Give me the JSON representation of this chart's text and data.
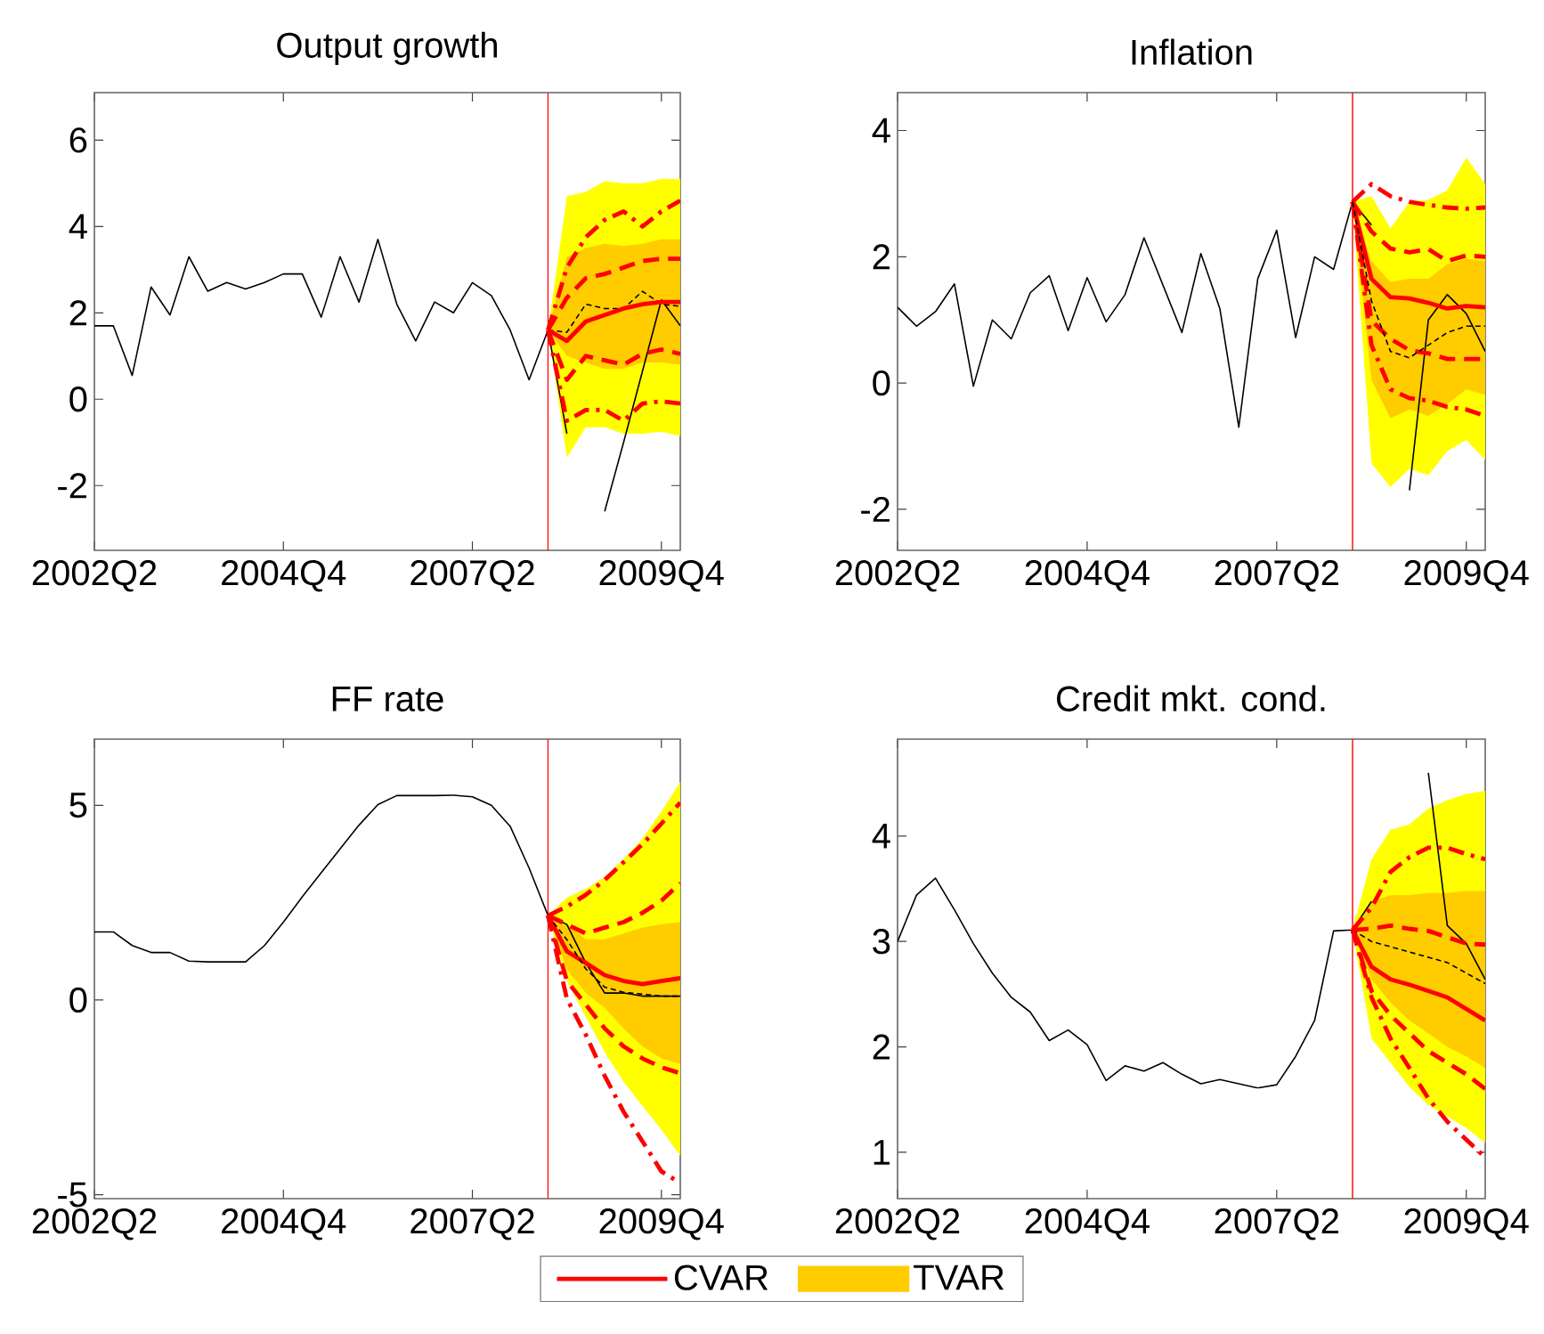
{
  "chart_data": [
    {
      "type": "line",
      "title": "Output growth",
      "categories": [
        "2002Q2",
        null,
        null,
        null,
        null,
        null,
        null,
        null,
        null,
        null,
        "2004Q4",
        null,
        null,
        null,
        null,
        null,
        null,
        null,
        null,
        null,
        "2007Q2",
        null,
        null,
        null,
        null,
        null,
        null,
        null,
        null,
        null,
        "2009Q4",
        null
      ],
      "ylim": [
        -3.5,
        7.1
      ],
      "yticks": [
        -2,
        0,
        2,
        4,
        6
      ],
      "series": [
        {
          "color": "#ffff00",
          "values": [
            null,
            null,
            null,
            null,
            null,
            null,
            null,
            null,
            null,
            null,
            null,
            null,
            null,
            null,
            null,
            null,
            null,
            null,
            null,
            null,
            null,
            null,
            null,
            null,
            null,
            null,
            null,
            null,
            null,
            null,
            null,
            null
          ],
          "upper": [
            null,
            null,
            null,
            null,
            null,
            null,
            null,
            null,
            null,
            null,
            null,
            null,
            null,
            null,
            null,
            null,
            null,
            null,
            null,
            null,
            null,
            null,
            null,
            null,
            1.6,
            4.7,
            4.8,
            5.05,
            5.0,
            5.0,
            5.1,
            5.1
          ],
          "lower": [
            null,
            null,
            null,
            null,
            null,
            null,
            null,
            null,
            null,
            null,
            null,
            null,
            null,
            null,
            null,
            null,
            null,
            null,
            null,
            null,
            null,
            null,
            null,
            null,
            1.6,
            -1.35,
            -0.65,
            -0.65,
            -0.8,
            -0.8,
            -0.75,
            -0.85
          ]
        },
        {
          "color": "#ffcc00",
          "values": [
            null,
            null,
            null,
            null,
            null,
            null,
            null,
            null,
            null,
            null,
            null,
            null,
            null,
            null,
            null,
            null,
            null,
            null,
            null,
            null,
            null,
            null,
            null,
            null,
            null,
            null,
            null,
            null,
            null,
            null,
            null,
            null
          ],
          "upper": [
            null,
            null,
            null,
            null,
            null,
            null,
            null,
            null,
            null,
            null,
            null,
            null,
            null,
            null,
            null,
            null,
            null,
            null,
            null,
            null,
            null,
            null,
            null,
            null,
            1.6,
            3.3,
            3.5,
            3.6,
            3.55,
            3.6,
            3.7,
            3.7
          ],
          "lower": [
            null,
            null,
            null,
            null,
            null,
            null,
            null,
            null,
            null,
            null,
            null,
            null,
            null,
            null,
            null,
            null,
            null,
            null,
            null,
            null,
            null,
            null,
            null,
            null,
            1.6,
            1.0,
            0.85,
            0.7,
            0.7,
            0.85,
            0.85,
            0.8
          ]
        },
        {
          "color": "#000000",
          "values": [
            1.7,
            1.7,
            0.55,
            2.6,
            1.95,
            3.3,
            2.5,
            2.7,
            2.55,
            2.7,
            2.9,
            2.9,
            1.9,
            3.3,
            2.25,
            3.7,
            2.2,
            1.35,
            2.25,
            2.0,
            2.7,
            2.4,
            1.6,
            0.45,
            1.6,
            -0.8,
            null,
            -2.6,
            -1.0,
            0.65,
            2.3,
            1.7
          ]
        },
        {
          "color": "#000000",
          "line_style": "dashed",
          "values": [
            null,
            null,
            null,
            null,
            null,
            null,
            null,
            null,
            null,
            null,
            null,
            null,
            null,
            null,
            null,
            null,
            null,
            null,
            null,
            null,
            null,
            null,
            null,
            null,
            1.6,
            1.55,
            2.2,
            2.1,
            2.1,
            2.5,
            2.2,
            2.15
          ]
        },
        {
          "color": "#ff0000",
          "values": [
            null,
            null,
            null,
            null,
            null,
            null,
            null,
            null,
            null,
            null,
            null,
            null,
            null,
            null,
            null,
            null,
            null,
            null,
            null,
            null,
            null,
            null,
            null,
            null,
            1.6,
            1.35,
            1.8,
            1.95,
            2.1,
            2.2,
            2.25,
            2.25
          ]
        },
        {
          "color": "#ff0000",
          "line_style": "dashed",
          "values": [
            null,
            null,
            null,
            null,
            null,
            null,
            null,
            null,
            null,
            null,
            null,
            null,
            null,
            null,
            null,
            null,
            null,
            null,
            null,
            null,
            null,
            null,
            null,
            null,
            1.6,
            2.35,
            2.8,
            2.9,
            3.05,
            3.2,
            3.25,
            3.25
          ]
        },
        {
          "color": "#ff0000",
          "line_style": "dashed",
          "values": [
            null,
            null,
            null,
            null,
            null,
            null,
            null,
            null,
            null,
            null,
            null,
            null,
            null,
            null,
            null,
            null,
            null,
            null,
            null,
            null,
            null,
            null,
            null,
            null,
            1.6,
            0.45,
            1.0,
            0.9,
            0.8,
            1.05,
            1.15,
            1.05
          ]
        },
        {
          "color": "#ff0000",
          "line_style": "dashdot",
          "values": [
            null,
            null,
            null,
            null,
            null,
            null,
            null,
            null,
            null,
            null,
            null,
            null,
            null,
            null,
            null,
            null,
            null,
            null,
            null,
            null,
            null,
            null,
            null,
            null,
            1.6,
            3.05,
            3.75,
            4.15,
            4.35,
            4.0,
            4.35,
            4.6
          ]
        },
        {
          "color": "#ff0000",
          "line_style": "dashdot",
          "values": [
            null,
            null,
            null,
            null,
            null,
            null,
            null,
            null,
            null,
            null,
            null,
            null,
            null,
            null,
            null,
            null,
            null,
            null,
            null,
            null,
            null,
            null,
            null,
            null,
            1.6,
            -0.5,
            -0.25,
            -0.25,
            -0.5,
            -0.1,
            -0.05,
            -0.1
          ]
        }
      ]
    },
    {
      "type": "line",
      "title": "Inflation",
      "categories": [
        "2002Q2",
        null,
        null,
        null,
        null,
        null,
        null,
        null,
        null,
        null,
        "2004Q4",
        null,
        null,
        null,
        null,
        null,
        null,
        null,
        null,
        null,
        "2007Q2",
        null,
        null,
        null,
        null,
        null,
        null,
        null,
        null,
        null,
        "2009Q4",
        null
      ],
      "ylim": [
        -2.65,
        4.6
      ],
      "yticks": [
        -2,
        0,
        2,
        4
      ],
      "series": [
        {
          "color": "#ffff00",
          "values": [
            null,
            null,
            null,
            null,
            null,
            null,
            null,
            null,
            null,
            null,
            null,
            null,
            null,
            null,
            null,
            null,
            null,
            null,
            null,
            null,
            null,
            null,
            null,
            null,
            null,
            null,
            null,
            null,
            null,
            null,
            null,
            null
          ],
          "upper": [
            null,
            null,
            null,
            null,
            null,
            null,
            null,
            null,
            null,
            null,
            null,
            null,
            null,
            null,
            null,
            null,
            null,
            null,
            null,
            null,
            null,
            null,
            null,
            null,
            2.87,
            2.96,
            2.45,
            2.87,
            2.9,
            3.05,
            3.57,
            3.15
          ],
          "lower": [
            null,
            null,
            null,
            null,
            null,
            null,
            null,
            null,
            null,
            null,
            null,
            null,
            null,
            null,
            null,
            null,
            null,
            null,
            null,
            null,
            null,
            null,
            null,
            null,
            2.87,
            -1.27,
            -1.65,
            -1.36,
            -1.46,
            -1.08,
            -0.9,
            -1.22
          ]
        },
        {
          "color": "#ffcc00",
          "values": [
            null,
            null,
            null,
            null,
            null,
            null,
            null,
            null,
            null,
            null,
            null,
            null,
            null,
            null,
            null,
            null,
            null,
            null,
            null,
            null,
            null,
            null,
            null,
            null,
            null,
            null,
            null,
            null,
            null,
            null,
            null,
            null
          ],
          "upper": [
            null,
            null,
            null,
            null,
            null,
            null,
            null,
            null,
            null,
            null,
            null,
            null,
            null,
            null,
            null,
            null,
            null,
            null,
            null,
            null,
            null,
            null,
            null,
            null,
            2.87,
            1.93,
            1.6,
            1.65,
            1.65,
            1.88,
            1.97,
            1.93
          ],
          "lower": [
            null,
            null,
            null,
            null,
            null,
            null,
            null,
            null,
            null,
            null,
            null,
            null,
            null,
            null,
            null,
            null,
            null,
            null,
            null,
            null,
            null,
            null,
            null,
            null,
            2.87,
            0.05,
            -0.56,
            -0.42,
            -0.52,
            -0.33,
            -0.1,
            -0.19
          ]
        },
        {
          "color": "#000000",
          "values": [
            1.2,
            0.9,
            1.13,
            1.57,
            -0.05,
            1.0,
            0.7,
            1.43,
            1.7,
            0.83,
            1.67,
            0.97,
            1.4,
            2.3,
            1.55,
            0.8,
            2.05,
            1.18,
            -0.7,
            1.65,
            2.42,
            0.72,
            2.0,
            1.8,
            2.87,
            2.5,
            null,
            -1.7,
            1.0,
            1.4,
            1.1,
            0.5
          ]
        },
        {
          "color": "#ff0000",
          "values": [
            null,
            null,
            null,
            null,
            null,
            null,
            null,
            null,
            null,
            null,
            null,
            null,
            null,
            null,
            null,
            null,
            null,
            null,
            null,
            null,
            null,
            null,
            null,
            null,
            2.87,
            1.65,
            1.36,
            1.34,
            1.27,
            1.18,
            1.22,
            1.2
          ]
        },
        {
          "color": "#ff0000",
          "line_style": "dashed",
          "values": [
            null,
            null,
            null,
            null,
            null,
            null,
            null,
            null,
            null,
            null,
            null,
            null,
            null,
            null,
            null,
            null,
            null,
            null,
            null,
            null,
            null,
            null,
            null,
            null,
            2.87,
            2.4,
            2.13,
            2.07,
            2.12,
            1.93,
            2.02,
            2.0
          ]
        },
        {
          "color": "#ff0000",
          "line_style": "dashed",
          "values": [
            null,
            null,
            null,
            null,
            null,
            null,
            null,
            null,
            null,
            null,
            null,
            null,
            null,
            null,
            null,
            null,
            null,
            null,
            null,
            null,
            null,
            null,
            null,
            null,
            2.87,
            0.99,
            0.7,
            0.52,
            0.47,
            0.38,
            0.38,
            0.38
          ]
        },
        {
          "color": "#ff0000",
          "line_style": "dashdot",
          "values": [
            null,
            null,
            null,
            null,
            null,
            null,
            null,
            null,
            null,
            null,
            null,
            null,
            null,
            null,
            null,
            null,
            null,
            null,
            null,
            null,
            null,
            null,
            null,
            null,
            2.87,
            3.15,
            2.96,
            2.87,
            2.82,
            2.78,
            2.76,
            2.78
          ]
        },
        {
          "color": "#ff0000",
          "line_style": "dashdot",
          "values": [
            null,
            null,
            null,
            null,
            null,
            null,
            null,
            null,
            null,
            null,
            null,
            null,
            null,
            null,
            null,
            null,
            null,
            null,
            null,
            null,
            null,
            null,
            null,
            null,
            2.87,
            0.6,
            -0.1,
            -0.24,
            -0.28,
            -0.38,
            -0.42,
            -0.52
          ]
        },
        {
          "color": "#000000",
          "line_style": "dashed",
          "values": [
            null,
            null,
            null,
            null,
            null,
            null,
            null,
            null,
            null,
            null,
            null,
            null,
            null,
            null,
            null,
            null,
            null,
            null,
            null,
            null,
            null,
            null,
            null,
            null,
            2.87,
            1.3,
            0.5,
            0.4,
            0.6,
            0.8,
            0.9,
            0.9
          ]
        }
      ]
    },
    {
      "type": "line",
      "title": "FF rate",
      "legend": "bottom",
      "categories": [
        "2002Q2",
        null,
        null,
        null,
        null,
        null,
        null,
        null,
        null,
        null,
        "2004Q4",
        null,
        null,
        null,
        null,
        null,
        null,
        null,
        null,
        null,
        "2007Q2",
        null,
        null,
        null,
        null,
        null,
        null,
        null,
        null,
        null,
        "2009Q4",
        null
      ],
      "ylim": [
        -5.1,
        6.7
      ],
      "yticks": [
        -5,
        0,
        5
      ],
      "series": [
        {
          "color": "#ffff00",
          "values": [
            null,
            null,
            null,
            null,
            null,
            null,
            null,
            null,
            null,
            null,
            null,
            null,
            null,
            null,
            null,
            null,
            null,
            null,
            null,
            null,
            null,
            null,
            null,
            null,
            null,
            null,
            null,
            null,
            null,
            null,
            null,
            null
          ],
          "upper": [
            null,
            null,
            null,
            null,
            null,
            null,
            null,
            null,
            null,
            null,
            null,
            null,
            null,
            null,
            null,
            null,
            null,
            null,
            null,
            null,
            null,
            null,
            null,
            null,
            2.17,
            2.63,
            2.85,
            3.16,
            3.62,
            4.15,
            4.84,
            5.6
          ],
          "lower": [
            null,
            null,
            null,
            null,
            null,
            null,
            null,
            null,
            null,
            null,
            null,
            null,
            null,
            null,
            null,
            null,
            null,
            null,
            null,
            null,
            null,
            null,
            null,
            null,
            2.17,
            0.49,
            -0.43,
            -1.34,
            -2.1,
            -2.72,
            -3.33,
            -4.0
          ]
        },
        {
          "name": "TVAR",
          "color": "#ffcc00",
          "values": [
            null,
            null,
            null,
            null,
            null,
            null,
            null,
            null,
            null,
            null,
            null,
            null,
            null,
            null,
            null,
            null,
            null,
            null,
            null,
            null,
            null,
            null,
            null,
            null,
            null,
            null,
            null,
            null,
            null,
            null,
            null,
            null
          ],
          "upper": [
            null,
            null,
            null,
            null,
            null,
            null,
            null,
            null,
            null,
            null,
            null,
            null,
            null,
            null,
            null,
            null,
            null,
            null,
            null,
            null,
            null,
            null,
            null,
            null,
            2.17,
            1.94,
            1.56,
            1.56,
            1.71,
            1.86,
            1.94,
            2.0
          ],
          "lower": [
            null,
            null,
            null,
            null,
            null,
            null,
            null,
            null,
            null,
            null,
            null,
            null,
            null,
            null,
            null,
            null,
            null,
            null,
            null,
            null,
            null,
            null,
            null,
            null,
            2.17,
            0.79,
            0.18,
            -0.2,
            -0.73,
            -1.19,
            -1.5,
            -1.65
          ]
        },
        {
          "color": "#000000",
          "values": [
            1.75,
            1.75,
            1.4,
            1.22,
            1.22,
            1.0,
            0.98,
            0.98,
            0.98,
            1.4,
            2.0,
            2.65,
            3.27,
            3.88,
            4.49,
            5.02,
            5.25,
            5.25,
            5.25,
            5.26,
            5.22,
            5.0,
            4.46,
            3.39,
            2.17,
            1.94,
            0.95,
            0.18,
            0.18,
            0.1,
            0.1,
            0.1
          ]
        },
        {
          "name": "CVAR",
          "color": "#ff0000",
          "values": [
            null,
            null,
            null,
            null,
            null,
            null,
            null,
            null,
            null,
            null,
            null,
            null,
            null,
            null,
            null,
            null,
            null,
            null,
            null,
            null,
            null,
            null,
            null,
            null,
            2.17,
            1.25,
            0.95,
            0.64,
            0.49,
            0.41,
            0.49,
            0.56
          ]
        },
        {
          "color": "#000000",
          "line_style": "dashed",
          "values": [
            null,
            null,
            null,
            null,
            null,
            null,
            null,
            null,
            null,
            null,
            null,
            null,
            null,
            null,
            null,
            null,
            null,
            null,
            null,
            null,
            null,
            null,
            null,
            null,
            2.17,
            1.55,
            0.8,
            0.33,
            0.2,
            0.15,
            0.1,
            0.1
          ]
        },
        {
          "color": "#ff0000",
          "line_style": "dashed",
          "values": [
            null,
            null,
            null,
            null,
            null,
            null,
            null,
            null,
            null,
            null,
            null,
            null,
            null,
            null,
            null,
            null,
            null,
            null,
            null,
            null,
            null,
            null,
            null,
            null,
            2.17,
            1.94,
            1.71,
            1.86,
            2.0,
            2.24,
            2.55,
            3.0
          ]
        },
        {
          "color": "#ff0000",
          "line_style": "dashed",
          "values": [
            null,
            null,
            null,
            null,
            null,
            null,
            null,
            null,
            null,
            null,
            null,
            null,
            null,
            null,
            null,
            null,
            null,
            null,
            null,
            null,
            null,
            null,
            null,
            null,
            2.17,
            0.49,
            -0.12,
            -0.73,
            -1.19,
            -1.5,
            -1.73,
            -1.88
          ]
        },
        {
          "color": "#ff0000",
          "line_style": "dashdot",
          "values": [
            null,
            null,
            null,
            null,
            null,
            null,
            null,
            null,
            null,
            null,
            null,
            null,
            null,
            null,
            null,
            null,
            null,
            null,
            null,
            null,
            null,
            null,
            null,
            null,
            2.17,
            2.4,
            2.7,
            3.08,
            3.54,
            4.0,
            4.53,
            5.07
          ]
        },
        {
          "color": "#ff0000",
          "line_style": "dashdot",
          "values": [
            null,
            null,
            null,
            null,
            null,
            null,
            null,
            null,
            null,
            null,
            null,
            null,
            null,
            null,
            null,
            null,
            null,
            null,
            null,
            null,
            null,
            null,
            null,
            null,
            2.17,
            0.03,
            -0.89,
            -1.95,
            -2.87,
            -3.63,
            -4.4,
            -4.7
          ]
        }
      ]
    },
    {
      "type": "line",
      "title": "Credit mkt. cond.",
      "categories": [
        "2002Q2",
        null,
        null,
        null,
        null,
        null,
        null,
        null,
        null,
        null,
        "2004Q4",
        null,
        null,
        null,
        null,
        null,
        null,
        null,
        null,
        null,
        "2007Q2",
        null,
        null,
        null,
        null,
        null,
        null,
        null,
        null,
        null,
        "2009Q4",
        null
      ],
      "ylim": [
        0.56,
        4.92
      ],
      "yticks": [
        1,
        2,
        3,
        4
      ],
      "series": [
        {
          "color": "#ffff00",
          "values": [
            null,
            null,
            null,
            null,
            null,
            null,
            null,
            null,
            null,
            null,
            null,
            null,
            null,
            null,
            null,
            null,
            null,
            null,
            null,
            null,
            null,
            null,
            null,
            null,
            null,
            null,
            null,
            null,
            null,
            null,
            null,
            null
          ],
          "upper": [
            null,
            null,
            null,
            null,
            null,
            null,
            null,
            null,
            null,
            null,
            null,
            null,
            null,
            null,
            null,
            null,
            null,
            null,
            null,
            null,
            null,
            null,
            null,
            null,
            3.11,
            3.78,
            4.06,
            4.11,
            4.26,
            4.34,
            4.4,
            4.43
          ],
          "lower": [
            null,
            null,
            null,
            null,
            null,
            null,
            null,
            null,
            null,
            null,
            null,
            null,
            null,
            null,
            null,
            null,
            null,
            null,
            null,
            null,
            null,
            null,
            null,
            null,
            3.11,
            2.08,
            1.85,
            1.62,
            1.45,
            1.34,
            1.23,
            1.09
          ]
        },
        {
          "color": "#ffcc00",
          "values": [
            null,
            null,
            null,
            null,
            null,
            null,
            null,
            null,
            null,
            null,
            null,
            null,
            null,
            null,
            null,
            null,
            null,
            null,
            null,
            null,
            null,
            null,
            null,
            null,
            null,
            null,
            null,
            null,
            null,
            null,
            null,
            null
          ],
          "upper": [
            null,
            null,
            null,
            null,
            null,
            null,
            null,
            null,
            null,
            null,
            null,
            null,
            null,
            null,
            null,
            null,
            null,
            null,
            null,
            null,
            null,
            null,
            null,
            null,
            3.11,
            3.38,
            3.44,
            3.44,
            3.46,
            3.46,
            3.48,
            3.48
          ],
          "lower": [
            null,
            null,
            null,
            null,
            null,
            null,
            null,
            null,
            null,
            null,
            null,
            null,
            null,
            null,
            null,
            null,
            null,
            null,
            null,
            null,
            null,
            null,
            null,
            null,
            3.11,
            2.64,
            2.42,
            2.25,
            2.13,
            2.0,
            1.91,
            1.8
          ]
        },
        {
          "color": "#000000",
          "values": [
            3.0,
            3.44,
            3.6,
            3.3,
            2.98,
            2.7,
            2.47,
            2.33,
            2.06,
            2.16,
            2.02,
            1.68,
            1.82,
            1.77,
            1.85,
            1.74,
            1.65,
            1.69,
            1.65,
            1.61,
            1.64,
            1.91,
            2.25,
            3.1,
            3.11,
            3.38,
            null,
            null,
            4.6,
            3.15,
            2.98,
            2.64
          ]
        },
        {
          "color": "#000000",
          "line_style": "dashed",
          "values": [
            null,
            null,
            null,
            null,
            null,
            null,
            null,
            null,
            null,
            null,
            null,
            null,
            null,
            null,
            null,
            null,
            null,
            null,
            null,
            null,
            null,
            null,
            null,
            null,
            3.11,
            3.0,
            2.95,
            2.9,
            2.85,
            2.8,
            2.7,
            2.6
          ]
        },
        {
          "color": "#ff0000",
          "values": [
            null,
            null,
            null,
            null,
            null,
            null,
            null,
            null,
            null,
            null,
            null,
            null,
            null,
            null,
            null,
            null,
            null,
            null,
            null,
            null,
            null,
            null,
            null,
            null,
            3.11,
            2.76,
            2.64,
            2.59,
            2.53,
            2.47,
            2.36,
            2.25
          ]
        },
        {
          "color": "#ff0000",
          "line_style": "dashed",
          "values": [
            null,
            null,
            null,
            null,
            null,
            null,
            null,
            null,
            null,
            null,
            null,
            null,
            null,
            null,
            null,
            null,
            null,
            null,
            null,
            null,
            null,
            null,
            null,
            null,
            3.11,
            3.12,
            3.15,
            3.12,
            3.1,
            3.04,
            2.98,
            2.97
          ]
        },
        {
          "color": "#ff0000",
          "line_style": "dashed",
          "values": [
            null,
            null,
            null,
            null,
            null,
            null,
            null,
            null,
            null,
            null,
            null,
            null,
            null,
            null,
            null,
            null,
            null,
            null,
            null,
            null,
            null,
            null,
            null,
            null,
            3.11,
            2.53,
            2.3,
            2.13,
            1.96,
            1.85,
            1.74,
            1.6
          ]
        },
        {
          "color": "#ff0000",
          "line_style": "dashdot",
          "values": [
            null,
            null,
            null,
            null,
            null,
            null,
            null,
            null,
            null,
            null,
            null,
            null,
            null,
            null,
            null,
            null,
            null,
            null,
            null,
            null,
            null,
            null,
            null,
            null,
            3.11,
            3.32,
            3.66,
            3.8,
            3.89,
            3.89,
            3.83,
            3.78
          ]
        },
        {
          "color": "#ff0000",
          "line_style": "dashdot",
          "values": [
            null,
            null,
            null,
            null,
            null,
            null,
            null,
            null,
            null,
            null,
            null,
            null,
            null,
            null,
            null,
            null,
            null,
            null,
            null,
            null,
            null,
            null,
            null,
            null,
            3.11,
            2.47,
            2.08,
            1.8,
            1.51,
            1.29,
            1.12,
            0.95
          ]
        }
      ]
    }
  ]
}
